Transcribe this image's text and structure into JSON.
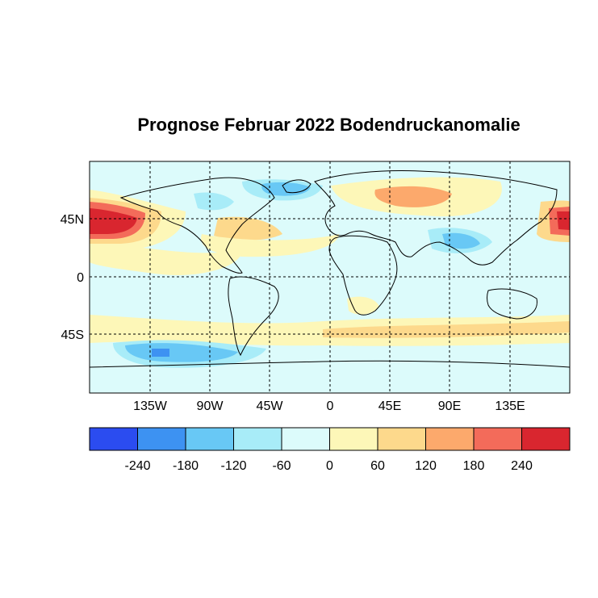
{
  "title": "Prognose Februar 2022 Bodendruckanomalie",
  "map": {
    "lat_labels": [
      "45N",
      "0",
      "45S"
    ],
    "lon_labels": [
      "135W",
      "90W",
      "45W",
      "0",
      "45E",
      "90E",
      "135E"
    ]
  },
  "colorbar": {
    "colors": [
      "#2b4cf0",
      "#3d92f2",
      "#68c8f5",
      "#a8ecf8",
      "#dcfbfb",
      "#fdf7b8",
      "#fdd98c",
      "#fca96c",
      "#f36b5a",
      "#d9262f"
    ],
    "tick_labels": [
      "-240",
      "-180",
      "-120",
      "-60",
      "0",
      "60",
      "120",
      "180",
      "240"
    ]
  }
}
